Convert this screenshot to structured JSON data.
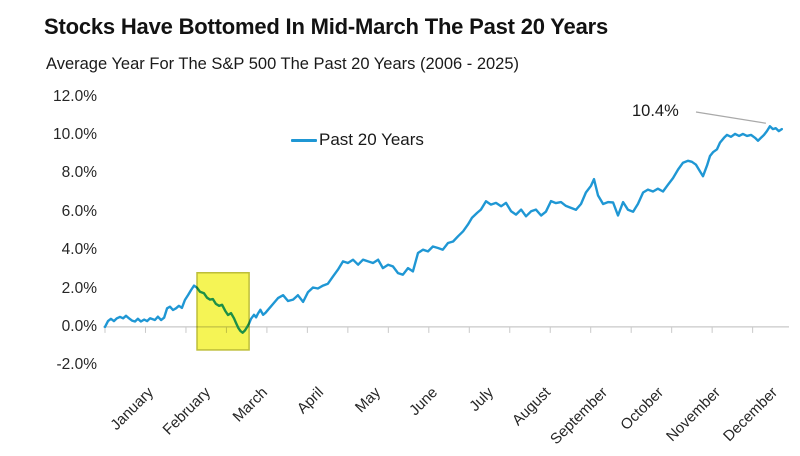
{
  "header": {
    "title": "Stocks Have Bottomed In Mid-March The Past 20 Years",
    "subtitle": "Average Year For The S&P 500 The Past 20 Years (2006 - 2025)"
  },
  "legend": {
    "label": "Past 20 Years"
  },
  "annotation": {
    "label": "10.4%"
  },
  "colors": {
    "line": "#1F97D4",
    "highlight_fill": "#F5F455",
    "highlight_border": "#BDBE39",
    "axis": "#C9C9C9",
    "leader": "#A9A9A9",
    "text": "#1A1A1A"
  },
  "chart_data": {
    "type": "line",
    "title": "Stocks Have Bottomed In Mid-March The Past 20 Years",
    "subtitle": "Average Year For The S&P 500 The Past 20 Years (2006 - 2025)",
    "legend_position": "top-center",
    "grid": "zero-axis-only",
    "x_categories": [
      "January",
      "February",
      "March",
      "April",
      "May",
      "June",
      "July",
      "August",
      "September",
      "October",
      "November",
      "December"
    ],
    "x_days_per_month": 21,
    "x_total_days": 252,
    "x_tick_interval_days": 15,
    "y_tick_labels": [
      "12.0%",
      "10.0%",
      "8.0%",
      "6.0%",
      "4.0%",
      "2.0%",
      "0.0%",
      "-2.0%"
    ],
    "y_tick_values": [
      12,
      10,
      8,
      6,
      4,
      2,
      0,
      -2
    ],
    "ylim": [
      -2.9,
      12.6
    ],
    "highlight_box": {
      "day_start": 34.1,
      "day_end": 53.4,
      "value_top": 2.82,
      "value_bottom": -1.2
    },
    "annotations": [
      {
        "text": "10.4%",
        "day": 246.4,
        "value": 10.45
      }
    ],
    "series": [
      {
        "name": "Past 20 Years",
        "color": "#1F97D4",
        "points": [
          [
            0,
            0.0
          ],
          [
            1.1,
            0.3
          ],
          [
            2.2,
            0.42
          ],
          [
            3.3,
            0.3
          ],
          [
            4.4,
            0.45
          ],
          [
            5.6,
            0.52
          ],
          [
            6.7,
            0.45
          ],
          [
            7.8,
            0.58
          ],
          [
            8.9,
            0.45
          ],
          [
            10,
            0.33
          ],
          [
            11.1,
            0.28
          ],
          [
            12.2,
            0.42
          ],
          [
            13.3,
            0.28
          ],
          [
            14.5,
            0.38
          ],
          [
            15.6,
            0.3
          ],
          [
            16.7,
            0.45
          ],
          [
            18.5,
            0.36
          ],
          [
            19.6,
            0.53
          ],
          [
            20.8,
            0.36
          ],
          [
            21.9,
            0.48
          ],
          [
            23,
            0.97
          ],
          [
            24.1,
            1.05
          ],
          [
            25.2,
            0.88
          ],
          [
            26.3,
            0.97
          ],
          [
            27.4,
            1.1
          ],
          [
            28.5,
            0.99
          ],
          [
            29.6,
            1.4
          ],
          [
            30.8,
            1.66
          ],
          [
            31.9,
            1.92
          ],
          [
            33,
            2.15
          ],
          [
            34.1,
            2.04
          ],
          [
            35.2,
            1.83
          ],
          [
            36.7,
            1.75
          ],
          [
            37.8,
            1.52
          ],
          [
            38.9,
            1.42
          ],
          [
            40,
            1.45
          ],
          [
            41.1,
            1.2
          ],
          [
            42.3,
            1.1
          ],
          [
            43.4,
            1.15
          ],
          [
            44.5,
            0.85
          ],
          [
            45.6,
            0.62
          ],
          [
            46.7,
            0.72
          ],
          [
            47.8,
            0.45
          ],
          [
            48.6,
            0.2
          ],
          [
            49.4,
            -0.05
          ],
          [
            50.2,
            -0.22
          ],
          [
            51,
            -0.3
          ],
          [
            51.9,
            -0.18
          ],
          [
            52.7,
            0.0
          ],
          [
            53.4,
            0.18
          ],
          [
            54.1,
            0.42
          ],
          [
            55.2,
            0.63
          ],
          [
            56,
            0.5
          ],
          [
            56.7,
            0.7
          ],
          [
            57.6,
            0.89
          ],
          [
            58.6,
            0.63
          ],
          [
            59.5,
            0.74
          ],
          [
            60.4,
            0.89
          ],
          [
            61.4,
            1.05
          ],
          [
            62.3,
            1.2
          ],
          [
            64.1,
            1.5
          ],
          [
            66,
            1.65
          ],
          [
            67.8,
            1.35
          ],
          [
            69.7,
            1.42
          ],
          [
            71.5,
            1.65
          ],
          [
            73.4,
            1.3
          ],
          [
            75.2,
            1.8
          ],
          [
            77.1,
            2.05
          ],
          [
            78.9,
            2.0
          ],
          [
            80.8,
            2.15
          ],
          [
            82.6,
            2.25
          ],
          [
            84.5,
            2.63
          ],
          [
            86.3,
            2.98
          ],
          [
            88.2,
            3.41
          ],
          [
            90,
            3.33
          ],
          [
            91.9,
            3.5
          ],
          [
            93.8,
            3.24
          ],
          [
            95.6,
            3.5
          ],
          [
            97.5,
            3.41
          ],
          [
            99.3,
            3.33
          ],
          [
            101.2,
            3.5
          ],
          [
            103,
            3.06
          ],
          [
            104.9,
            3.24
          ],
          [
            106.7,
            3.15
          ],
          [
            108.6,
            2.8
          ],
          [
            110.4,
            2.72
          ],
          [
            112.3,
            3.06
          ],
          [
            114.1,
            2.89
          ],
          [
            116,
            3.85
          ],
          [
            117.8,
            4.02
          ],
          [
            119.7,
            3.93
          ],
          [
            121.5,
            4.19
          ],
          [
            123.4,
            4.11
          ],
          [
            125.2,
            4.02
          ],
          [
            127.1,
            4.37
          ],
          [
            129,
            4.45
          ],
          [
            130.8,
            4.72
          ],
          [
            132.7,
            4.98
          ],
          [
            134.5,
            5.33
          ],
          [
            136,
            5.68
          ],
          [
            137.9,
            5.94
          ],
          [
            139.3,
            6.11
          ],
          [
            141.2,
            6.54
          ],
          [
            143,
            6.37
          ],
          [
            144.9,
            6.46
          ],
          [
            146.8,
            6.28
          ],
          [
            148.6,
            6.46
          ],
          [
            150.5,
            6.02
          ],
          [
            152.3,
            5.85
          ],
          [
            154.2,
            6.11
          ],
          [
            156,
            5.76
          ],
          [
            157.9,
            6.02
          ],
          [
            159.7,
            6.11
          ],
          [
            161.6,
            5.8
          ],
          [
            163.4,
            6.0
          ],
          [
            165.3,
            6.55
          ],
          [
            167.1,
            6.45
          ],
          [
            169,
            6.5
          ],
          [
            170.8,
            6.3
          ],
          [
            172.7,
            6.2
          ],
          [
            174.5,
            6.1
          ],
          [
            176.4,
            6.4
          ],
          [
            178.2,
            7.0
          ],
          [
            180.1,
            7.35
          ],
          [
            181.2,
            7.7
          ],
          [
            182.7,
            6.85
          ],
          [
            184.6,
            6.4
          ],
          [
            186.4,
            6.5
          ],
          [
            188.3,
            6.48
          ],
          [
            190.1,
            5.8
          ],
          [
            192,
            6.5
          ],
          [
            193.8,
            6.1
          ],
          [
            195.7,
            6.0
          ],
          [
            197.5,
            6.4
          ],
          [
            199.4,
            7.0
          ],
          [
            201.2,
            7.15
          ],
          [
            203.1,
            7.05
          ],
          [
            204.9,
            7.2
          ],
          [
            206.8,
            7.05
          ],
          [
            208.6,
            7.4
          ],
          [
            210.5,
            7.75
          ],
          [
            212.4,
            8.2
          ],
          [
            214.2,
            8.55
          ],
          [
            216.1,
            8.65
          ],
          [
            217.5,
            8.6
          ],
          [
            219,
            8.45
          ],
          [
            220.5,
            8.1
          ],
          [
            221.6,
            7.85
          ],
          [
            223.1,
            8.4
          ],
          [
            224.2,
            8.9
          ],
          [
            225.3,
            9.1
          ],
          [
            226.8,
            9.25
          ],
          [
            227.9,
            9.6
          ],
          [
            229.4,
            9.85
          ],
          [
            230.5,
            10.0
          ],
          [
            232,
            9.9
          ],
          [
            233.5,
            10.05
          ],
          [
            235,
            9.95
          ],
          [
            236.4,
            10.05
          ],
          [
            237.9,
            9.95
          ],
          [
            239.4,
            10.0
          ],
          [
            240.9,
            9.85
          ],
          [
            242,
            9.7
          ],
          [
            243.1,
            9.85
          ],
          [
            244.2,
            10.0
          ],
          [
            245.3,
            10.2
          ],
          [
            246.4,
            10.45
          ],
          [
            247.5,
            10.3
          ],
          [
            248.6,
            10.35
          ],
          [
            249.7,
            10.2
          ],
          [
            250.8,
            10.3
          ]
        ]
      }
    ]
  }
}
